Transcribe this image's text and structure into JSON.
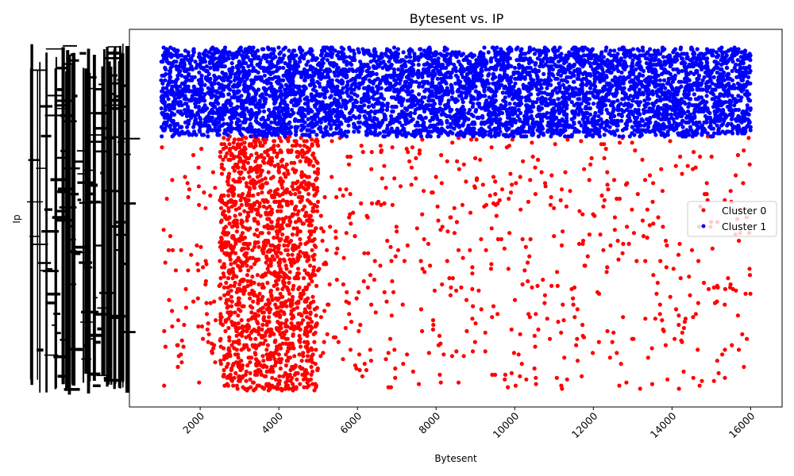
{
  "chart_data": {
    "type": "scatter",
    "title": "Bytesent vs. IP",
    "xlabel": "Bytesent",
    "ylabel": "Ip",
    "xlim": [
      200,
      16800
    ],
    "x_ticks": [
      2000,
      4000,
      6000,
      8000,
      10000,
      12000,
      14000,
      16000
    ],
    "x_tick_labels": [
      "2000",
      "4000",
      "6000",
      "8000",
      "10000",
      "12000",
      "14000",
      "16000"
    ],
    "y_tick_labels_note": "y tick labels are unreadable (dense overlapping categorical IP labels)",
    "grid": false,
    "legend_position": "center-right",
    "series": [
      {
        "name": "Cluster 0",
        "color": "#ff0000",
        "regions": [
          {
            "x_range": [
              2500,
              5000
            ],
            "y_range": [
              0.0,
              0.74
            ],
            "count": 1400
          },
          {
            "x_range": [
              1000,
              16000
            ],
            "y_range": [
              0.0,
              0.74
            ],
            "count": 750
          }
        ]
      },
      {
        "name": "Cluster 1",
        "color": "#0000ff",
        "regions": [
          {
            "x_range": [
              1000,
              16000
            ],
            "y_range": [
              0.74,
              1.0
            ],
            "count": 5500
          }
        ]
      }
    ]
  }
}
